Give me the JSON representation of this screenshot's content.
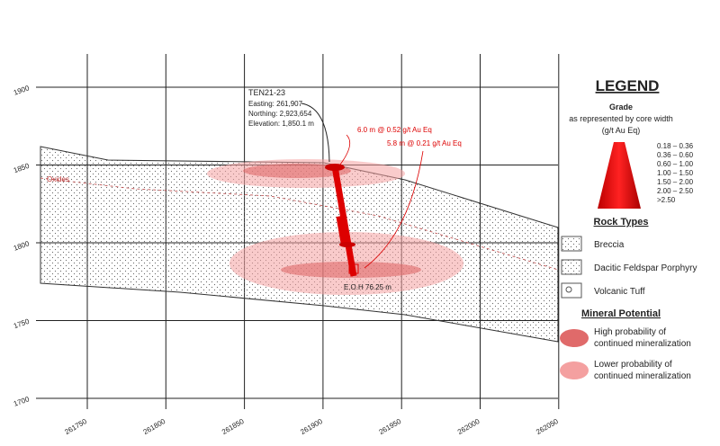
{
  "section": {
    "hole": {
      "name": "TEN21-23",
      "easting": "Easting: 261,907",
      "northing": "Northing: 2,923,654",
      "elevation": "Elevation: 1,850.1 m",
      "eoh": "E.O.H 76.25 m"
    },
    "intercepts": [
      "6.0 m @ 0.52 g/t Au Eq",
      "5.8 m @ 0.21 g/t Au Eq"
    ],
    "oxides": "Oxides",
    "elevations": [
      "1900",
      "1850",
      "1800",
      "1750",
      "1700"
    ],
    "eastings": [
      "261750",
      "261800",
      "261850",
      "261900",
      "261950",
      "262000",
      "262050"
    ]
  },
  "legend": {
    "title": "LEGEND",
    "grade_title": "Grade",
    "grade_subtitle": "as represented by core width",
    "grade_units": "(g/t Au Eq)",
    "grades": [
      "0.18 – 0.36",
      "0.36 – 0.60",
      "0.60 – 1.00",
      "1.00 – 1.50",
      "1.50 – 2.00",
      "2.00 – 2.50",
      ">2.50"
    ],
    "rock_title": "Rock Types",
    "rocks": [
      "Breccia",
      "Dacitic Feldspar Porphyry",
      "Volcanic Tuff"
    ],
    "mineral_title": "Mineral Potential",
    "minerals": [
      "High probability of continued mineralization",
      "Lower probability of continued mineralization"
    ]
  }
}
